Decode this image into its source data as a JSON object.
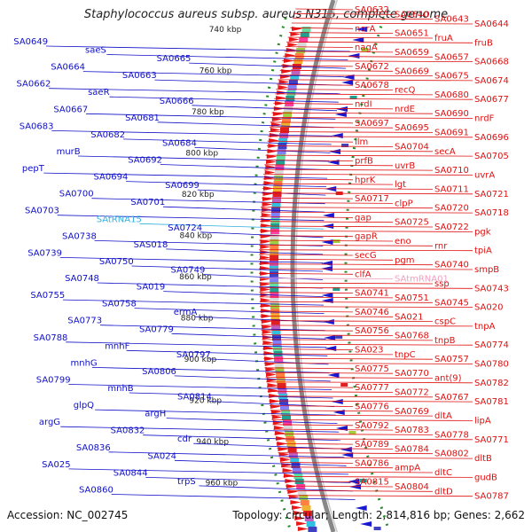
{
  "title": "Staphylococcus aureus subsp. aureus N315, complete genome",
  "footer": {
    "accession": "Accession: NC_002745",
    "summary": "Topology: circular; Length: 2,814,816 bp; Genes: 2,662"
  },
  "colors": {
    "left_label": "#1010c8",
    "right_label": "#e01010",
    "rna_left": "#30b0e0",
    "rna_right": "#f0a0c0",
    "backbone": "#888888",
    "ticks": "#2a8a2a"
  },
  "scale_labels": [
    "740 kbp",
    "760 kbp",
    "780 kbp",
    "800 kbp",
    "820 kbp",
    "840 kbp",
    "860 kbp",
    "880 kbp",
    "900 kbp",
    "920 kbp",
    "940 kbp",
    "960 kbp"
  ],
  "left_labels": [
    {
      "text": "SA0649"
    },
    {
      "text": "saeS"
    },
    {
      "text": "SA0665"
    },
    {
      "text": "SA0664"
    },
    {
      "text": "SA0663"
    },
    {
      "text": "SA0662"
    },
    {
      "text": "saeR"
    },
    {
      "text": "SA0666"
    },
    {
      "text": "SA0667"
    },
    {
      "text": "SA0681"
    },
    {
      "text": "SA0683"
    },
    {
      "text": "SA0682"
    },
    {
      "text": "SA0684"
    },
    {
      "text": "murB"
    },
    {
      "text": "SA0692"
    },
    {
      "text": "pepT"
    },
    {
      "text": "SA0694"
    },
    {
      "text": "SA0699"
    },
    {
      "text": "SA0700"
    },
    {
      "text": "SA0701"
    },
    {
      "text": "SA0703"
    },
    {
      "text": "SAtRNA15"
    },
    {
      "text": "SA0724"
    },
    {
      "text": "SA0738"
    },
    {
      "text": "SAS018"
    },
    {
      "text": "SA0739"
    },
    {
      "text": "SA0750"
    },
    {
      "text": "SA0749"
    },
    {
      "text": "SA0748"
    },
    {
      "text": "SA019"
    },
    {
      "text": "SA0755"
    },
    {
      "text": "SA0758"
    },
    {
      "text": "ermA"
    },
    {
      "text": "SA0773"
    },
    {
      "text": "SA0779"
    },
    {
      "text": "SA0788"
    },
    {
      "text": "mnhF"
    },
    {
      "text": "SA0797"
    },
    {
      "text": "mnhG"
    },
    {
      "text": "SA0806"
    },
    {
      "text": "SA0799"
    },
    {
      "text": "mnhB"
    },
    {
      "text": "SA0814"
    },
    {
      "text": "glpQ"
    },
    {
      "text": "argH"
    },
    {
      "text": "argG"
    },
    {
      "text": "SA0832"
    },
    {
      "text": "cdr"
    },
    {
      "text": "SA0836"
    },
    {
      "text": "SA024"
    },
    {
      "text": "SA025"
    },
    {
      "text": "SA0844"
    },
    {
      "text": "trpS"
    },
    {
      "text": "SA0860"
    }
  ],
  "right_labels": [
    {
      "text": "SA0632"
    },
    {
      "text": "SA0640"
    },
    {
      "text": "SA0643"
    },
    {
      "text": "SA0644"
    },
    {
      "text": "norA"
    },
    {
      "text": "SA0651"
    },
    {
      "text": "fruA"
    },
    {
      "text": "fruB"
    },
    {
      "text": "nagA"
    },
    {
      "text": "SA0659"
    },
    {
      "text": "SA0657"
    },
    {
      "text": "SA0668"
    },
    {
      "text": "SA0672"
    },
    {
      "text": "SA0669"
    },
    {
      "text": "SA0675"
    },
    {
      "text": "SA0674"
    },
    {
      "text": "SA0678"
    },
    {
      "text": "recQ"
    },
    {
      "text": "SA0680"
    },
    {
      "text": "SA0677"
    },
    {
      "text": "nrdI"
    },
    {
      "text": "nrdE"
    },
    {
      "text": "SA0690"
    },
    {
      "text": "nrdF"
    },
    {
      "text": "SA0697"
    },
    {
      "text": "SA0695"
    },
    {
      "text": "SA0691"
    },
    {
      "text": "SA0696"
    },
    {
      "text": "llm"
    },
    {
      "text": "SA0704"
    },
    {
      "text": "secA"
    },
    {
      "text": "SA0705"
    },
    {
      "text": "prfB"
    },
    {
      "text": "uvrB"
    },
    {
      "text": "SA0710"
    },
    {
      "text": "uvrA"
    },
    {
      "text": "hprK"
    },
    {
      "text": "lgt"
    },
    {
      "text": "SA0711"
    },
    {
      "text": "SA0721"
    },
    {
      "text": "SA0717"
    },
    {
      "text": "clpP"
    },
    {
      "text": "SA0720"
    },
    {
      "text": "SA0718"
    },
    {
      "text": "gap"
    },
    {
      "text": "SA0725"
    },
    {
      "text": "SA0722"
    },
    {
      "text": "pgk"
    },
    {
      "text": "gapR"
    },
    {
      "text": "eno"
    },
    {
      "text": "rnr"
    },
    {
      "text": "tpiA"
    },
    {
      "text": "secG"
    },
    {
      "text": "pgm"
    },
    {
      "text": "SA0740"
    },
    {
      "text": "smpB"
    },
    {
      "text": "clfA"
    },
    {
      "text": "SAtmRNA01"
    },
    {
      "text": "ssp"
    },
    {
      "text": "SA0743"
    },
    {
      "text": "SA0741"
    },
    {
      "text": "SA0751"
    },
    {
      "text": "SA0745"
    },
    {
      "text": "SA020"
    },
    {
      "text": "SA0746"
    },
    {
      "text": "SA021"
    },
    {
      "text": "cspC"
    },
    {
      "text": "tnpA"
    },
    {
      "text": "SA0756"
    },
    {
      "text": "SA0768"
    },
    {
      "text": "tnpB"
    },
    {
      "text": "SA0774"
    },
    {
      "text": "SA023"
    },
    {
      "text": "tnpC"
    },
    {
      "text": "SA0757"
    },
    {
      "text": "SA0780"
    },
    {
      "text": "SA0775"
    },
    {
      "text": "SA0770"
    },
    {
      "text": "ant(9)"
    },
    {
      "text": "SA0782"
    },
    {
      "text": "SA0777"
    },
    {
      "text": "SA0772"
    },
    {
      "text": "SA0767"
    },
    {
      "text": "SA0781"
    },
    {
      "text": "SA0776"
    },
    {
      "text": "SA0769"
    },
    {
      "text": "dltA"
    },
    {
      "text": "lipA"
    },
    {
      "text": "SA0792"
    },
    {
      "text": "SA0783"
    },
    {
      "text": "SA0778"
    },
    {
      "text": "SA0771"
    },
    {
      "text": "SA0789"
    },
    {
      "text": "SA0784"
    },
    {
      "text": "SA0802"
    },
    {
      "text": "dltB"
    },
    {
      "text": "SA0786"
    },
    {
      "text": "ampA"
    },
    {
      "text": "dltC"
    },
    {
      "text": "gudB"
    },
    {
      "text": "SA0815"
    },
    {
      "text": "SA0804"
    },
    {
      "text": "dltD"
    },
    {
      "text": "SA0787"
    }
  ]
}
